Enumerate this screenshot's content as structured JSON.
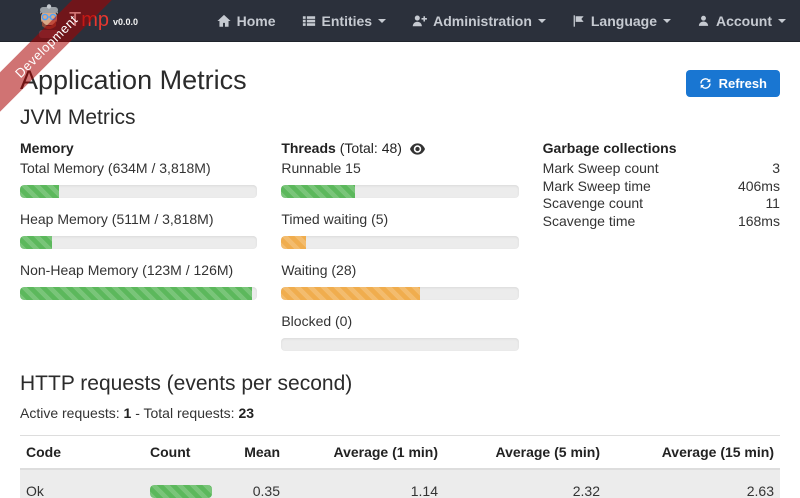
{
  "colors": {
    "navbar_bg": "#2b303b",
    "brand_accent": "#e8372f",
    "primary_blue": "#1976d2",
    "success_green": "#5cb85c",
    "warning_orange": "#f0ad4e",
    "ribbon_red": "#aa0000"
  },
  "ribbon": {
    "label": "Development"
  },
  "navbar": {
    "brand": {
      "name_t": "T",
      "name_mp": "mp",
      "version": "v0.0.0"
    },
    "items": [
      {
        "label": "Home"
      },
      {
        "label": "Entities"
      },
      {
        "label": "Administration"
      },
      {
        "label": "Language"
      },
      {
        "label": "Account"
      }
    ]
  },
  "page": {
    "title": "Application Metrics",
    "refresh_label": "Refresh",
    "jvm_title": "JVM Metrics"
  },
  "memory": {
    "title": "Memory",
    "items": [
      {
        "label": "Total Memory (634M / 3,818M)",
        "percent": 16.6,
        "color": "green"
      },
      {
        "label": "Heap Memory (511M / 3,818M)",
        "percent": 13.4,
        "color": "green"
      },
      {
        "label": "Non-Heap Memory (123M / 126M)",
        "percent": 97.6,
        "color": "green"
      }
    ]
  },
  "threads": {
    "title": "Threads",
    "total_label": "(Total: 48)",
    "items": [
      {
        "label": "Runnable 15",
        "percent": 31.25,
        "color": "green"
      },
      {
        "label": "Timed waiting (5)",
        "percent": 10.4,
        "color": "orange"
      },
      {
        "label": "Waiting (28)",
        "percent": 58.3,
        "color": "orange"
      },
      {
        "label": "Blocked (0)",
        "percent": 0,
        "color": "orange"
      }
    ]
  },
  "garbage": {
    "title": "Garbage collections",
    "rows": [
      {
        "label": "Mark Sweep count",
        "value": "3"
      },
      {
        "label": "Mark Sweep time",
        "value": "406ms"
      },
      {
        "label": "Scavenge count",
        "value": "11"
      },
      {
        "label": "Scavenge time",
        "value": "168ms"
      }
    ]
  },
  "http": {
    "title": "HTTP requests (events per second)",
    "active_label": "Active requests:",
    "active_value": "1",
    "separator": "-",
    "total_label": "Total requests:",
    "total_value": "23",
    "table": {
      "headers": [
        "Code",
        "Count",
        "Mean",
        "Average (1 min)",
        "Average (5 min)",
        "Average (15 min)"
      ],
      "rows": [
        {
          "code": "Ok",
          "count_percent": 100,
          "count_color": "green",
          "mean": "0.35",
          "avg1": "1.14",
          "avg5": "2.32",
          "avg15": "2.63"
        }
      ]
    }
  }
}
